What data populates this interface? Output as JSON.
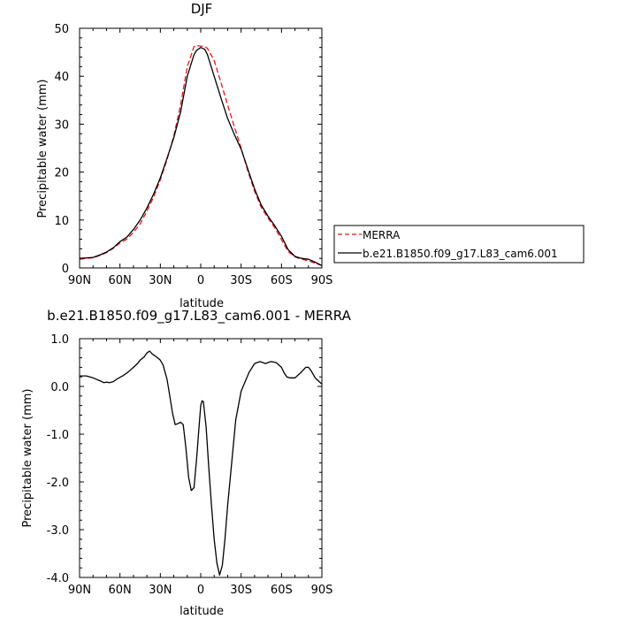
{
  "chart_data": [
    {
      "type": "line",
      "title": "DJF",
      "xlabel": "latitude",
      "ylabel": "Precipitable water (mm)",
      "xlim": [
        90,
        -90
      ],
      "ylim": [
        0,
        50
      ],
      "x_ticks": [
        90,
        60,
        30,
        0,
        -30,
        -60,
        -90
      ],
      "x_tick_labels": [
        "90N",
        "60N",
        "30N",
        "0",
        "30S",
        "60S",
        "90S"
      ],
      "y_ticks": [
        0,
        10,
        20,
        30,
        40,
        50
      ],
      "y_tick_labels": [
        "0",
        "10",
        "20",
        "30",
        "40",
        "50"
      ],
      "legend_position": "outside-right",
      "series": [
        {
          "name": "MERRA",
          "color": "#e8141c",
          "dash": "dashed",
          "x": [
            90,
            85,
            80,
            75,
            70,
            65,
            60,
            55,
            50,
            45,
            40,
            35,
            30,
            25,
            20,
            15,
            10,
            5,
            3,
            0,
            -3,
            -5,
            -10,
            -15,
            -20,
            -25,
            -30,
            -35,
            -40,
            -45,
            -50,
            -55,
            -60,
            -65,
            -70,
            -75,
            -80,
            -85,
            -90
          ],
          "values": [
            1.8,
            2.0,
            2.1,
            2.6,
            3.2,
            4.1,
            5.2,
            6.0,
            7.4,
            9.2,
            11.8,
            14.8,
            18.4,
            22.6,
            27.6,
            34.0,
            42.0,
            46.2,
            46.4,
            46.3,
            46.2,
            45.8,
            43.3,
            38.7,
            34.0,
            29.4,
            25.0,
            20.2,
            16.0,
            12.6,
            10.4,
            8.4,
            5.9,
            3.4,
            2.3,
            1.8,
            1.5,
            1.0,
            0.5
          ]
        },
        {
          "name": "b.e21.B1850.f09_g17.L83_cam6.001",
          "color": "#000000",
          "dash": "solid",
          "x": [
            90,
            85,
            80,
            75,
            70,
            65,
            60,
            55,
            50,
            45,
            40,
            35,
            30,
            25,
            20,
            15,
            10,
            5,
            3,
            0,
            -3,
            -5,
            -10,
            -15,
            -20,
            -25,
            -30,
            -35,
            -40,
            -45,
            -50,
            -55,
            -60,
            -65,
            -70,
            -75,
            -80,
            -85,
            -90
          ],
          "values": [
            2.0,
            2.1,
            2.2,
            2.7,
            3.3,
            4.2,
            5.5,
            6.4,
            8.0,
            10.0,
            12.5,
            15.4,
            18.8,
            22.9,
            27.2,
            32.5,
            40.0,
            44.5,
            45.4,
            46.0,
            45.6,
            44.5,
            40.0,
            35.5,
            31.2,
            27.8,
            24.8,
            20.6,
            16.5,
            13.1,
            10.8,
            8.8,
            6.6,
            3.8,
            2.4,
            2.0,
            1.8,
            1.2,
            0.5
          ]
        }
      ]
    },
    {
      "type": "line",
      "title": "b.e21.B1850.f09_g17.L83_cam6.001 - MERRA",
      "xlabel": "latitude",
      "ylabel": "Precipitable water (mm)",
      "xlim": [
        90,
        -90
      ],
      "ylim": [
        -4.0,
        1.0
      ],
      "x_ticks": [
        90,
        60,
        30,
        0,
        -30,
        -60,
        -90
      ],
      "x_tick_labels": [
        "90N",
        "60N",
        "30N",
        "0",
        "30S",
        "60S",
        "90S"
      ],
      "y_ticks": [
        1.0,
        0.0,
        -1.0,
        -2.0,
        -3.0,
        -4.0
      ],
      "y_tick_labels": [
        "1.0",
        "0.0",
        "-1.0",
        "-2.0",
        "-3.0",
        "-4.0"
      ],
      "series": [
        {
          "color": "#000000",
          "x": [
            90,
            85,
            80,
            75,
            72,
            70,
            68,
            65,
            62,
            58,
            54,
            50,
            47,
            45,
            42,
            40,
            38,
            36,
            33,
            30,
            28,
            25,
            23,
            21,
            19,
            17,
            15,
            13,
            11,
            9,
            7,
            5,
            3,
            1,
            0,
            -1,
            -2,
            -4,
            -6,
            -8,
            -10,
            -12,
            -14,
            -16,
            -18,
            -20,
            -23,
            -26,
            -30,
            -33,
            -36,
            -40,
            -44,
            -48,
            -52,
            -56,
            -60,
            -62,
            -64,
            -66,
            -70,
            -74,
            -78,
            -80,
            -82,
            -85,
            -88,
            -90
          ],
          "values": [
            0.22,
            0.22,
            0.18,
            0.12,
            0.08,
            0.09,
            0.08,
            0.1,
            0.16,
            0.22,
            0.3,
            0.4,
            0.48,
            0.55,
            0.62,
            0.7,
            0.74,
            0.68,
            0.62,
            0.55,
            0.45,
            0.15,
            -0.2,
            -0.55,
            -0.8,
            -0.78,
            -0.75,
            -0.8,
            -1.3,
            -1.9,
            -2.18,
            -2.12,
            -1.5,
            -0.75,
            -0.4,
            -0.3,
            -0.32,
            -0.85,
            -1.7,
            -2.5,
            -3.2,
            -3.7,
            -3.95,
            -3.75,
            -3.2,
            -2.5,
            -1.6,
            -0.7,
            -0.1,
            0.1,
            0.3,
            0.48,
            0.52,
            0.48,
            0.52,
            0.5,
            0.4,
            0.28,
            0.2,
            0.18,
            0.18,
            0.28,
            0.4,
            0.4,
            0.33,
            0.18,
            0.1,
            0.05
          ]
        }
      ]
    }
  ]
}
